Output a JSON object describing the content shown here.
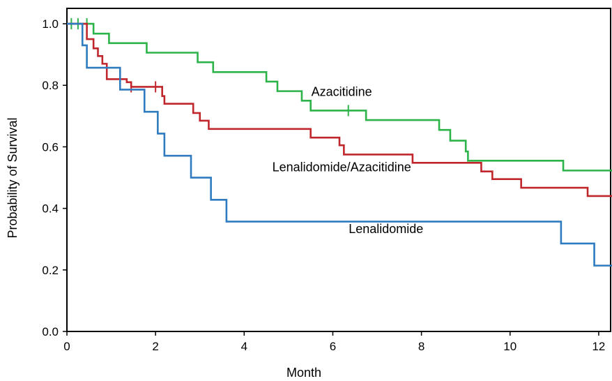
{
  "chart_data": {
    "type": "line",
    "xlabel": "Month",
    "ylabel": "Probability of Survival",
    "xlim": [
      0,
      12.3
    ],
    "ylim": [
      0,
      1.05
    ],
    "x_ticks": [
      0,
      2,
      4,
      6,
      8,
      10,
      12
    ],
    "y_ticks": [
      0.0,
      0.2,
      0.4,
      0.6,
      0.8,
      1.0
    ],
    "y_tick_labels": [
      "0.0",
      "0.2",
      "0.4",
      "0.6",
      "0.8",
      "1.0"
    ],
    "grid": false,
    "legend": "none",
    "series": [
      {
        "name": "Azacitidine",
        "color": "#2db34a",
        "label_at": [
          6.2,
          0.765
        ],
        "steps": [
          [
            0,
            1.0
          ],
          [
            0.6,
            0.968
          ],
          [
            0.95,
            0.937
          ],
          [
            1.8,
            0.906
          ],
          [
            2.95,
            0.875
          ],
          [
            3.3,
            0.843
          ],
          [
            4.5,
            0.812
          ],
          [
            4.75,
            0.781
          ],
          [
            5.3,
            0.75
          ],
          [
            5.5,
            0.718
          ],
          [
            6.75,
            0.687
          ],
          [
            8.4,
            0.655
          ],
          [
            8.65,
            0.62
          ],
          [
            9.0,
            0.585
          ],
          [
            9.05,
            0.555
          ],
          [
            11.2,
            0.523
          ],
          [
            12.3,
            0.523
          ]
        ],
        "censored": [
          [
            0.1,
            1.0
          ],
          [
            0.25,
            1.0
          ],
          [
            0.45,
            1.0
          ],
          [
            6.35,
            0.718
          ]
        ]
      },
      {
        "name": "Lenalidomide/Azacitidine",
        "color": "#c0272d",
        "label_at": [
          6.2,
          0.52
        ],
        "steps": [
          [
            0,
            1.0
          ],
          [
            0.45,
            0.95
          ],
          [
            0.6,
            0.92
          ],
          [
            0.7,
            0.895
          ],
          [
            0.8,
            0.87
          ],
          [
            0.9,
            0.82
          ],
          [
            1.35,
            0.81
          ],
          [
            1.45,
            0.795
          ],
          [
            2.15,
            0.765
          ],
          [
            2.2,
            0.74
          ],
          [
            2.85,
            0.71
          ],
          [
            3.0,
            0.685
          ],
          [
            3.2,
            0.658
          ],
          [
            5.5,
            0.63
          ],
          [
            6.15,
            0.605
          ],
          [
            6.25,
            0.575
          ],
          [
            7.8,
            0.548
          ],
          [
            9.35,
            0.52
          ],
          [
            9.6,
            0.495
          ],
          [
            10.25,
            0.467
          ],
          [
            11.75,
            0.44
          ],
          [
            12.3,
            0.44
          ]
        ],
        "censored": [
          [
            1.45,
            0.795
          ],
          [
            2.0,
            0.795
          ]
        ]
      },
      {
        "name": "Lenalidomide",
        "color": "#2f7bbf",
        "label_at": [
          7.2,
          0.32
        ],
        "steps": [
          [
            0,
            1.0
          ],
          [
            0.35,
            0.93
          ],
          [
            0.45,
            0.857
          ],
          [
            1.2,
            0.786
          ],
          [
            1.75,
            0.714
          ],
          [
            2.05,
            0.643
          ],
          [
            2.2,
            0.571
          ],
          [
            2.8,
            0.5
          ],
          [
            3.25,
            0.428
          ],
          [
            3.6,
            0.357
          ],
          [
            11.15,
            0.286
          ],
          [
            11.9,
            0.214
          ],
          [
            12.3,
            0.214
          ]
        ],
        "censored": []
      }
    ]
  }
}
